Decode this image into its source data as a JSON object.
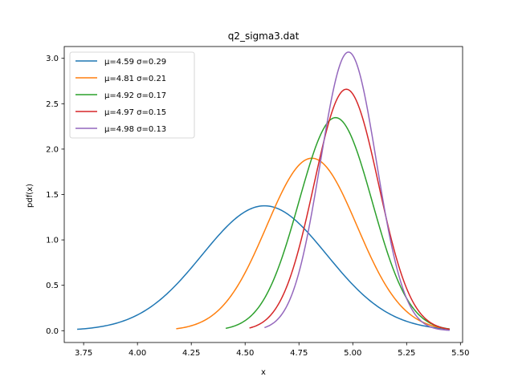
{
  "chart_data": {
    "type": "line",
    "title": "q2_sigma3.dat",
    "xlabel": "x",
    "ylabel": "pdf(x)",
    "xlim": [
      3.66,
      5.51
    ],
    "ylim": [
      -0.13,
      3.13
    ],
    "xticks": [
      3.75,
      4.0,
      4.25,
      4.5,
      4.75,
      5.0,
      5.25,
      5.5
    ],
    "xtick_labels": [
      "3.75",
      "4.00",
      "4.25",
      "4.50",
      "4.75",
      "5.00",
      "5.25",
      "5.50"
    ],
    "yticks": [
      0.0,
      0.5,
      1.0,
      1.5,
      2.0,
      2.5,
      3.0
    ],
    "ytick_labels": [
      "0.0",
      "0.5",
      "1.0",
      "1.5",
      "2.0",
      "2.5",
      "3.0"
    ],
    "grid": false,
    "legend_position": "top-left",
    "series": [
      {
        "name": "μ=4.59 σ=0.29",
        "mu": 4.59,
        "sigma": 0.29,
        "x_range": [
          3.72,
          5.45
        ],
        "color": "#1f77b4"
      },
      {
        "name": "μ=4.81 σ=0.21",
        "mu": 4.81,
        "sigma": 0.21,
        "x_range": [
          4.18,
          5.45
        ],
        "color": "#ff7f0e"
      },
      {
        "name": "μ=4.92 σ=0.17",
        "mu": 4.92,
        "sigma": 0.17,
        "x_range": [
          4.41,
          5.45
        ],
        "color": "#2ca02c"
      },
      {
        "name": "μ=4.97 σ=0.15",
        "mu": 4.97,
        "sigma": 0.15,
        "x_range": [
          4.52,
          5.45
        ],
        "color": "#d62728"
      },
      {
        "name": "μ=4.98 σ=0.13",
        "mu": 4.98,
        "sigma": 0.13,
        "x_range": [
          4.59,
          5.45
        ],
        "color": "#9467bd"
      }
    ]
  }
}
